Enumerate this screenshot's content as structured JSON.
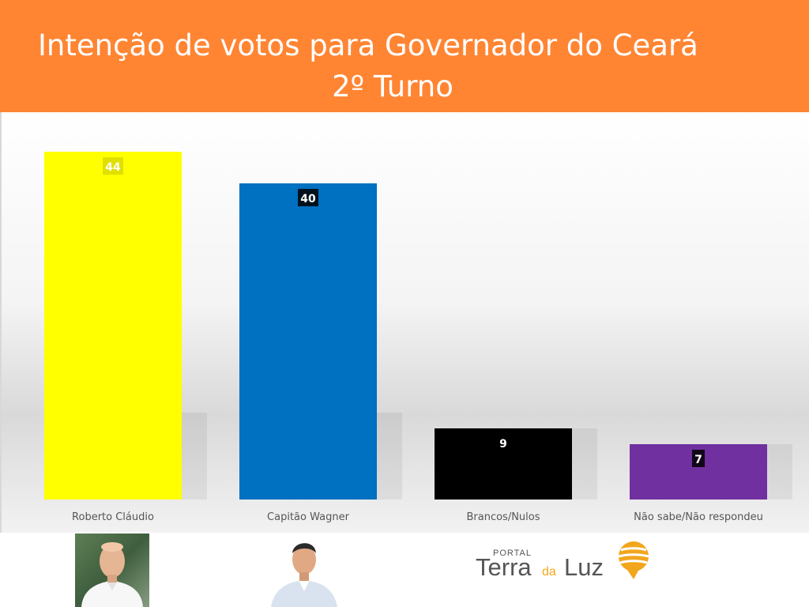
{
  "header": {
    "title_line1": "Intenção de votos para Governador do Ceará",
    "title_line2": "2º Turno",
    "background_color": "#ff8533"
  },
  "chart_data": {
    "type": "bar",
    "title": "Intenção de votos para Governador do Ceará 2º Turno",
    "categories": [
      "Roberto Cláudio",
      "Capitão Wagner",
      "Brancos/Nulos",
      "Não sabe/Não respondeu"
    ],
    "values": [
      44,
      40,
      9,
      7
    ],
    "colors": [
      "#ffff00",
      "#0070c0",
      "#000000",
      "#7030a0"
    ],
    "ylim": [
      0,
      48
    ],
    "grid": false,
    "legend": "none",
    "data_labels": true
  },
  "footer": {
    "photos": [
      {
        "icon": "person-photo-icon",
        "candidate": "Roberto Cláudio"
      },
      {
        "icon": "person-photo-icon",
        "candidate": "Capitão Wagner"
      }
    ],
    "logo": {
      "small": "PORTAL",
      "word1": "Terra",
      "word2": "da",
      "word3": "Luz",
      "icon": "sun-logo-icon",
      "accent_color": "#f2a61c"
    }
  }
}
